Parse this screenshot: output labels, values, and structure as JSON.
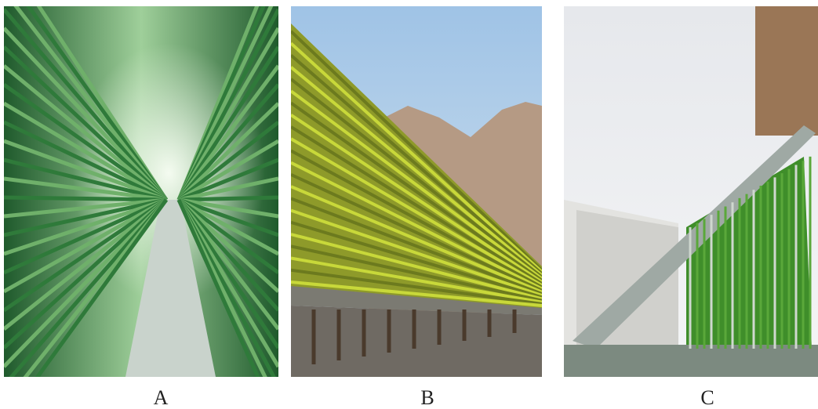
{
  "panels": [
    {
      "label": "A"
    },
    {
      "label": "B"
    },
    {
      "label": "C"
    }
  ]
}
